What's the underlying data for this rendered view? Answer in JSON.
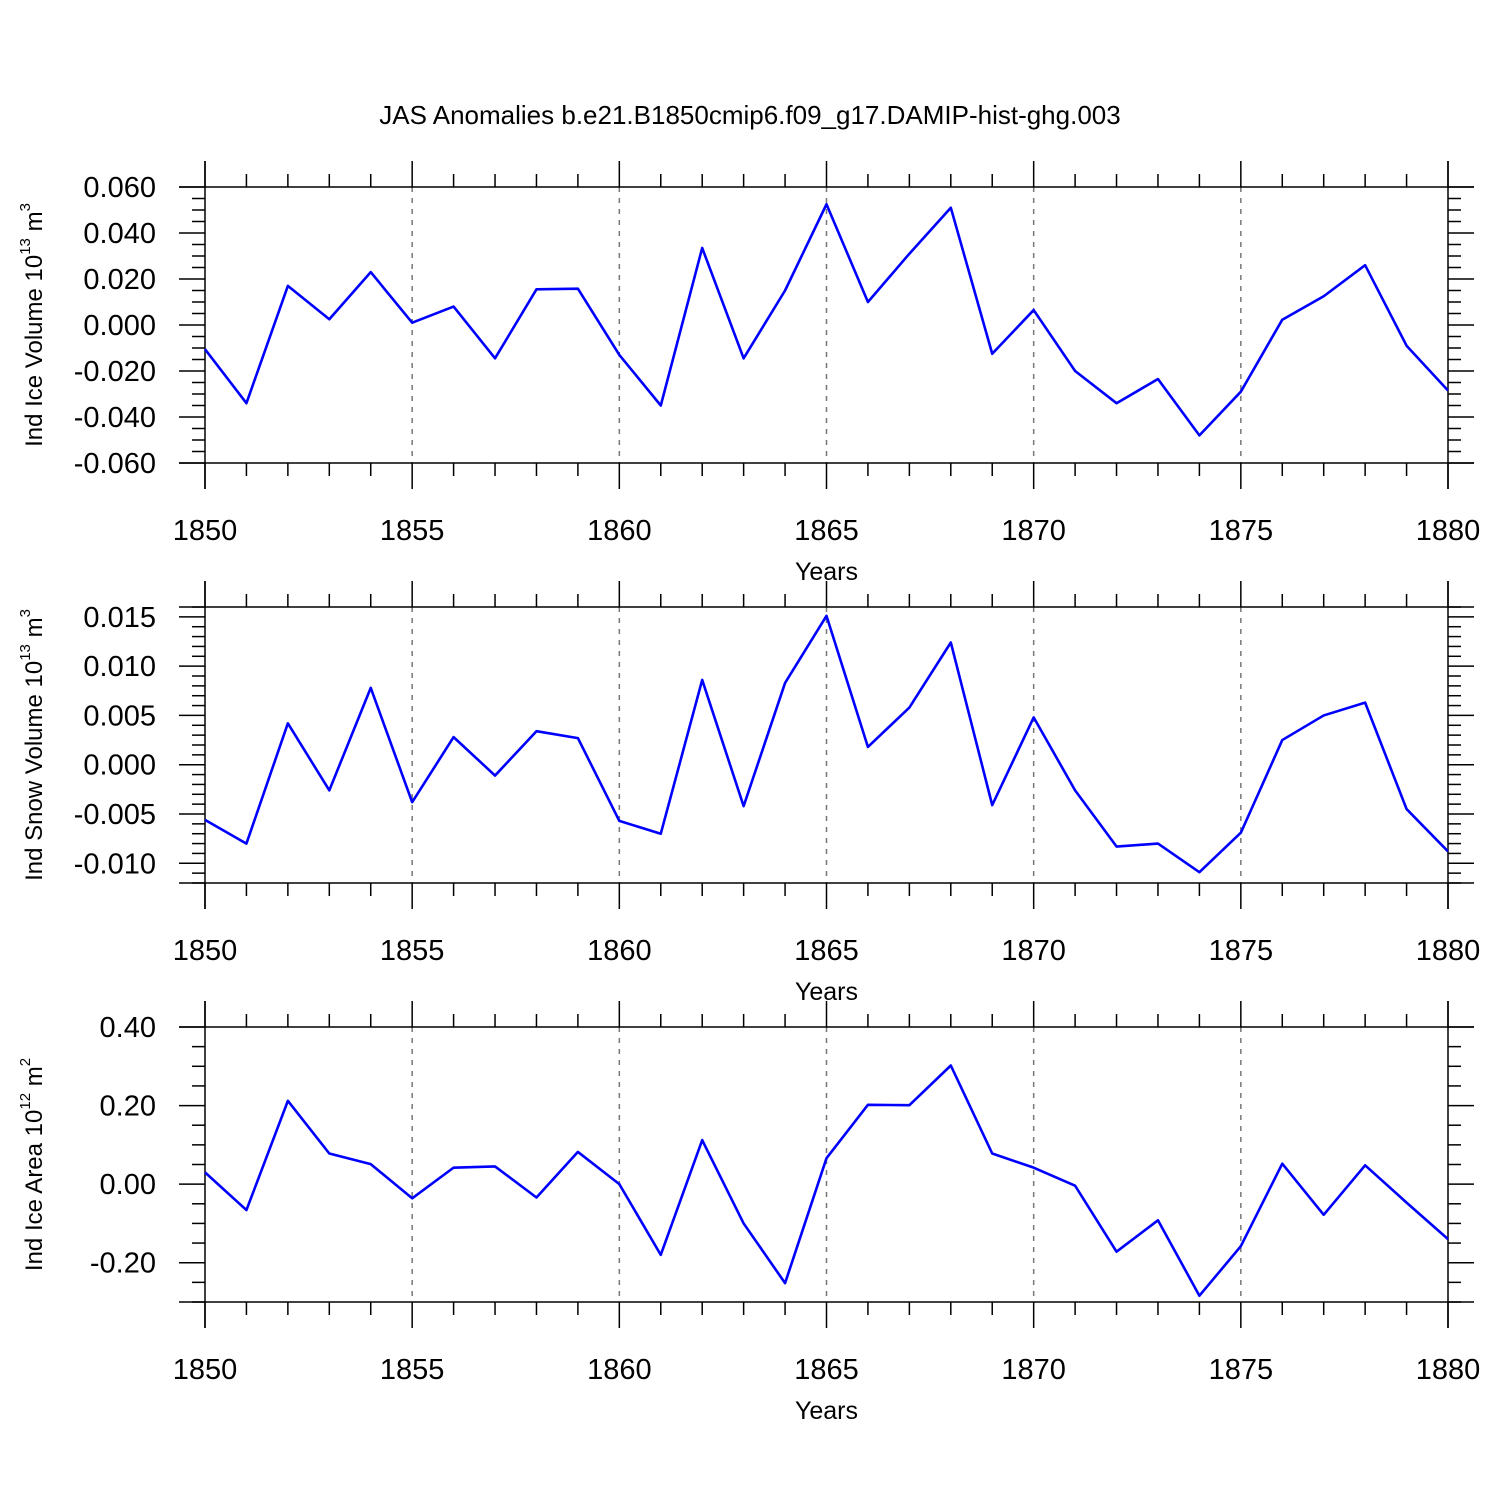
{
  "title": "JAS Anomalies b.e21.B1850cmip6.f09_g17.DAMIP-hist-ghg.003",
  "line_color": "#0000ff",
  "chart_data": [
    {
      "type": "line",
      "name": "ice-volume",
      "title": "",
      "xlabel": "Years",
      "ylabel": {
        "prefix": "Ind Ice Volume 10",
        "exp": "13",
        "unit": " m",
        "unit_exp": "3"
      },
      "xlim": [
        1850,
        1880
      ],
      "ylim": [
        -0.06,
        0.06
      ],
      "x_ticks": [
        1850,
        1855,
        1860,
        1865,
        1870,
        1875,
        1880
      ],
      "x_tick_labels": [
        "1850",
        "1855",
        "1860",
        "1865",
        "1870",
        "1875",
        "1880"
      ],
      "y_ticks": [
        -0.06,
        -0.04,
        -0.02,
        0.0,
        0.02,
        0.04,
        0.06
      ],
      "y_tick_labels": [
        "-0.060",
        "-0.040",
        "-0.020",
        "0.000",
        "0.020",
        "0.040",
        "0.060"
      ],
      "y_minor_step": 0.005,
      "x": [
        1850,
        1851,
        1852,
        1853,
        1854,
        1855,
        1856,
        1857,
        1858,
        1859,
        1860,
        1861,
        1862,
        1863,
        1864,
        1865,
        1866,
        1867,
        1868,
        1869,
        1870,
        1871,
        1872,
        1873,
        1874,
        1875,
        1876,
        1877,
        1878,
        1879,
        1880
      ],
      "values": [
        -0.0105,
        -0.034,
        0.017,
        0.0025,
        0.023,
        0.001,
        0.008,
        -0.0145,
        0.0155,
        0.0158,
        -0.013,
        -0.035,
        0.0335,
        -0.0145,
        0.015,
        0.0525,
        0.01,
        0.031,
        0.051,
        -0.0125,
        0.0065,
        -0.02,
        -0.034,
        -0.0235,
        -0.048,
        -0.029,
        0.0023,
        0.0125,
        0.026,
        -0.009,
        -0.0285
      ]
    },
    {
      "type": "line",
      "name": "snow-volume",
      "title": "",
      "xlabel": "Years",
      "ylabel": {
        "prefix": "Ind Snow Volume 10",
        "exp": "13",
        "unit": " m",
        "unit_exp": "3"
      },
      "xlim": [
        1850,
        1880
      ],
      "ylim": [
        -0.012,
        0.016
      ],
      "x_ticks": [
        1850,
        1855,
        1860,
        1865,
        1870,
        1875,
        1880
      ],
      "x_tick_labels": [
        "1850",
        "1855",
        "1860",
        "1865",
        "1870",
        "1875",
        "1880"
      ],
      "y_ticks": [
        -0.01,
        -0.005,
        0.0,
        0.005,
        0.01,
        0.015
      ],
      "y_tick_labels": [
        "-0.010",
        "-0.005",
        "0.000",
        "0.005",
        "0.010",
        "0.015"
      ],
      "y_minor_step": 0.001,
      "x": [
        1850,
        1851,
        1852,
        1853,
        1854,
        1855,
        1856,
        1857,
        1858,
        1859,
        1860,
        1861,
        1862,
        1863,
        1864,
        1865,
        1866,
        1867,
        1868,
        1869,
        1870,
        1871,
        1872,
        1873,
        1874,
        1875,
        1876,
        1877,
        1878,
        1879,
        1880
      ],
      "values": [
        -0.0056,
        -0.008,
        0.0042,
        -0.0026,
        0.0078,
        -0.0038,
        0.0028,
        -0.0011,
        0.0034,
        0.0027,
        -0.0057,
        -0.007,
        0.0086,
        -0.0042,
        0.0083,
        0.0151,
        0.0018,
        0.0058,
        0.0124,
        -0.0041,
        0.0048,
        -0.0026,
        -0.0083,
        -0.008,
        -0.0109,
        -0.0069,
        0.0025,
        0.005,
        0.0063,
        -0.0045,
        -0.0088
      ]
    },
    {
      "type": "line",
      "name": "ice-area",
      "title": "",
      "xlabel": "Years",
      "ylabel": {
        "prefix": "Ind Ice Area 10",
        "exp": "12",
        "unit": " m",
        "unit_exp": "2"
      },
      "xlim": [
        1850,
        1880
      ],
      "ylim": [
        -0.3,
        0.4
      ],
      "x_ticks": [
        1850,
        1855,
        1860,
        1865,
        1870,
        1875,
        1880
      ],
      "x_tick_labels": [
        "1850",
        "1855",
        "1860",
        "1865",
        "1870",
        "1875",
        "1880"
      ],
      "y_ticks": [
        -0.2,
        0.0,
        0.2,
        0.4
      ],
      "y_tick_labels": [
        "-0.20",
        "0.00",
        "0.20",
        "0.40"
      ],
      "y_minor_step": 0.05,
      "x": [
        1850,
        1851,
        1852,
        1853,
        1854,
        1855,
        1856,
        1857,
        1858,
        1859,
        1860,
        1861,
        1862,
        1863,
        1864,
        1865,
        1866,
        1867,
        1868,
        1869,
        1870,
        1871,
        1872,
        1873,
        1874,
        1875,
        1876,
        1877,
        1878,
        1879,
        1880
      ],
      "values": [
        0.03,
        -0.066,
        0.212,
        0.078,
        0.051,
        -0.036,
        0.042,
        0.045,
        -0.034,
        0.082,
        0.0,
        -0.18,
        0.112,
        -0.1,
        -0.252,
        0.066,
        0.202,
        0.201,
        0.302,
        0.078,
        0.042,
        -0.004,
        -0.172,
        -0.092,
        -0.284,
        -0.158,
        0.052,
        -0.078,
        0.048,
        -0.047,
        -0.14
      ]
    }
  ]
}
